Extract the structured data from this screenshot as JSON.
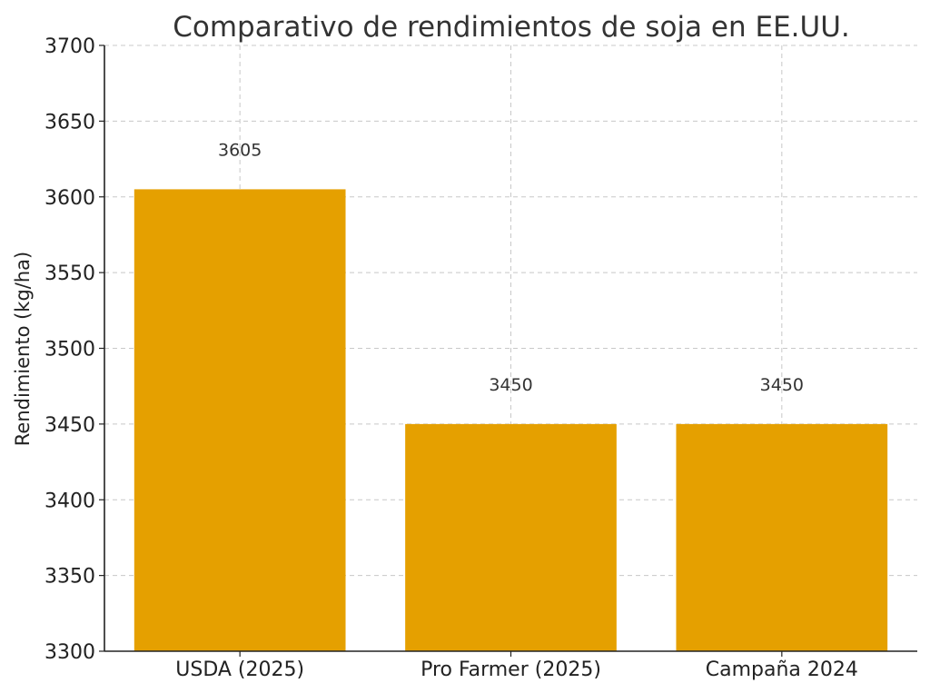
{
  "chart_data": {
    "type": "bar",
    "title": "Comparativo de rendimientos de soja en EE.UU.",
    "xlabel": "",
    "ylabel": "Rendimiento (kg/ha)",
    "categories": [
      "USDA (2025)",
      "Pro Farmer (2025)",
      "Campaña 2024"
    ],
    "values": [
      3605,
      3450,
      3450
    ],
    "data_labels": [
      "3605",
      "3450",
      "3450"
    ],
    "ylim": [
      3300,
      3700
    ],
    "yticks": [
      3300,
      3350,
      3400,
      3450,
      3500,
      3550,
      3600,
      3650,
      3700
    ],
    "grid": true,
    "bar_color": "#e5a000"
  }
}
